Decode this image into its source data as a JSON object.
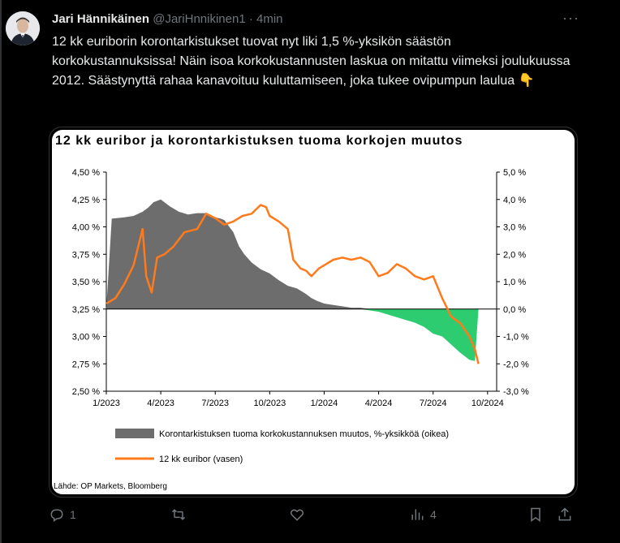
{
  "tweet": {
    "author_name": "Jari Hännikäinen",
    "author_handle": "@JariHnnikinen1",
    "separator": "·",
    "time": "4min",
    "text": "12 kk euriborin korontarkistukset tuovat nyt liki 1,5 %-yksikön säästön korkokustannuksissa! Näin isoa korkokustannusten laskua on mitattu viimeksi joulukuussa 2012. Säästynyttä rahaa kanavoituu kuluttamiseen, joka tukee ovipumpun laulua",
    "emoji": "👇"
  },
  "chart_data": {
    "type": "area",
    "title": "12 kk euribor ja korontarkistuksen tuoma korkojen muutos",
    "source": "Lähde: OP Markets, Bloomberg",
    "x_tick_labels": [
      "1/2023",
      "4/2023",
      "7/2023",
      "10/2023",
      "1/2024",
      "4/2024",
      "7/2024",
      "10/2024"
    ],
    "y_left_tick_labels": [
      "4,50 %",
      "4,25 %",
      "4,00 %",
      "3,75 %",
      "3,50 %",
      "3,25 %",
      "3,00 %",
      "2,75 %",
      "2,50 %"
    ],
    "y_right_tick_labels": [
      "5,0 %",
      "4,0 %",
      "3,0 %",
      "2,0 %",
      "1,0 %",
      "0,0 %",
      "-1,0 %",
      "-2,0 %",
      "-3,0 %"
    ],
    "ylim_left": [
      2.5,
      4.5
    ],
    "ylim_right": [
      -3.0,
      5.0
    ],
    "xlim_months": [
      0,
      21.5
    ],
    "colors": {
      "area_positive": "#6d6d6d",
      "area_negative": "#2ecc71",
      "line": "#ff7a1a"
    },
    "series": [
      {
        "name": "Korontarkistuksen tuoma korkokustannuksen muutos, %-yksikköä (oikea)",
        "axis": "right",
        "type": "area",
        "x": [
          0,
          0.3,
          1,
          1.5,
          2,
          2.3,
          2.6,
          3,
          3.5,
          4,
          4.5,
          5,
          5.5,
          6,
          6.3,
          6.5,
          7,
          7.3,
          7.6,
          8,
          8.5,
          9,
          9.5,
          10,
          10.5,
          11,
          11.3,
          11.6,
          12,
          12.5,
          13,
          13.5,
          14,
          14.5,
          15,
          15.5,
          16,
          16.5,
          17,
          17.5,
          18,
          18.5,
          19,
          19.5,
          20,
          20.3,
          20.5
        ],
        "values": [
          0,
          3.3,
          3.35,
          3.4,
          3.55,
          3.7,
          3.9,
          4.0,
          3.75,
          3.55,
          3.45,
          3.5,
          3.5,
          3.35,
          3.3,
          3.25,
          2.8,
          2.3,
          2.0,
          1.7,
          1.45,
          1.3,
          1.05,
          0.85,
          0.75,
          0.55,
          0.4,
          0.3,
          0.2,
          0.15,
          0.1,
          0.05,
          0.05,
          -0.05,
          -0.1,
          -0.2,
          -0.3,
          -0.4,
          -0.5,
          -0.65,
          -0.9,
          -1.0,
          -1.3,
          -1.6,
          -1.85,
          -1.9,
          0
        ]
      },
      {
        "name": "12 kk euribor (vasen)",
        "axis": "left",
        "type": "line",
        "x": [
          0,
          0.5,
          1,
          1.5,
          1.8,
          2.0,
          2.2,
          2.5,
          2.8,
          3.2,
          3.7,
          4.3,
          5,
          5.5,
          6,
          6.5,
          7,
          7.5,
          8,
          8.5,
          8.8,
          9,
          9.5,
          10,
          10.3,
          10.7,
          11,
          11.3,
          11.7,
          12,
          12.5,
          13,
          13.5,
          14,
          14.5,
          15,
          15.5,
          16,
          16.5,
          17,
          17.5,
          18,
          18.5,
          19,
          19.5,
          20,
          20.3,
          20.5
        ],
        "values": [
          3.3,
          3.35,
          3.48,
          3.65,
          3.85,
          3.98,
          3.55,
          3.4,
          3.72,
          3.75,
          3.82,
          3.95,
          3.98,
          4.12,
          4.08,
          4.02,
          4.05,
          4.1,
          4.12,
          4.2,
          4.18,
          4.1,
          4.05,
          3.98,
          3.7,
          3.62,
          3.6,
          3.55,
          3.62,
          3.65,
          3.7,
          3.72,
          3.7,
          3.72,
          3.68,
          3.55,
          3.58,
          3.66,
          3.62,
          3.55,
          3.52,
          3.55,
          3.35,
          3.18,
          3.12,
          3.0,
          2.88,
          2.75
        ]
      }
    ],
    "legend_position": "bottom"
  },
  "actions": {
    "reply_count": "1",
    "retweet_count": "",
    "like_count": "",
    "views_count": "4"
  }
}
